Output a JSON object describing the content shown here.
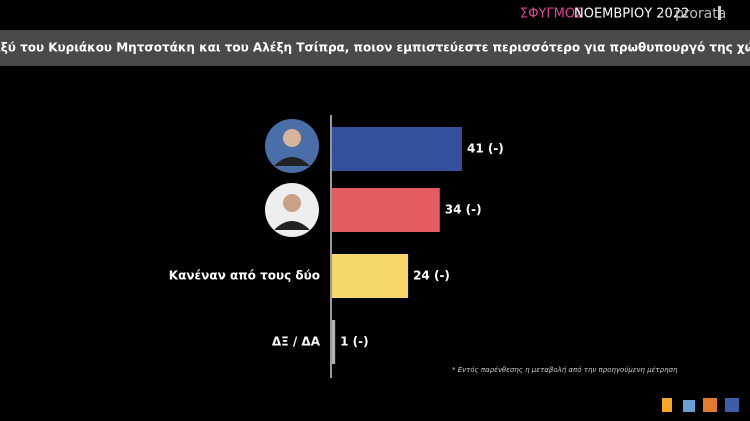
{
  "header": {
    "brand": "ΣΦΥΓΜΟΣ",
    "period": "ΝΟΕΜΒΡΙΟΥ 2022",
    "logo": "prorata"
  },
  "chart_data": {
    "type": "bar",
    "orientation": "horizontal",
    "title": "Μεταξύ του Κυριάκου Μητσοτάκη και του Αλέξη Τσίπρα, ποιον εμπιστεύεστε περισσότερο για πρωθυπουργό της χώρας;",
    "categories": [
      null,
      null,
      "Κανέναν από τους δύο",
      "ΔΞ / ΔΑ"
    ],
    "values": [
      41,
      34,
      24,
      1
    ],
    "value_labels": [
      "41 (-)",
      "34 (-)",
      "24 (-)",
      "1 (-)"
    ],
    "colors": [
      "#34509c",
      "#e35c61",
      "#f7d66a",
      "#b0b0b0"
    ],
    "note": "* Εντός παρένθεσης η μεταβολή από την προηγούμενη μέτρηση"
  }
}
